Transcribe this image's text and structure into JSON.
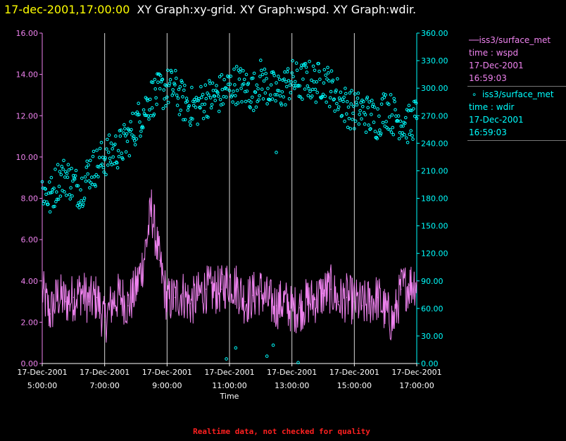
{
  "header": {
    "date_time": "17-dec-2001,17:00:00",
    "graphs": "XY Graph:xy-grid.  XY Graph:wspd.  XY Graph:wdir."
  },
  "legend": {
    "wspd": {
      "line1": "iss3/surface_met",
      "line2": "time : wspd",
      "line3": "17-Dec-2001",
      "line4": "16:59:03"
    },
    "wdir": {
      "line1": "iss3/surface_met",
      "line2": "time : wdir",
      "line3": "17-Dec-2001",
      "line4": "16:59:03"
    }
  },
  "footnote": "Realtime data, not checked for quality",
  "chart_data": {
    "type": "line",
    "xlabel": "Time",
    "x_range": [
      "17-Dec-2001 5:00:00",
      "17-Dec-2001 17:00:00"
    ],
    "x_ticks": [
      {
        "date": "17-Dec-2001",
        "time": "5:00:00"
      },
      {
        "date": "17-Dec-2001",
        "time": "7:00:00"
      },
      {
        "date": "17-Dec-2001",
        "time": "9:00:00"
      },
      {
        "date": "17-Dec-2001",
        "time": "11:00:00"
      },
      {
        "date": "17-Dec-2001",
        "time": "13:00:00"
      },
      {
        "date": "17-Dec-2001",
        "time": "15:00:00"
      },
      {
        "date": "17-Dec-2001",
        "time": "17:00:00"
      }
    ],
    "y_left": {
      "range": [
        0,
        16
      ],
      "ticks": [
        "0.00",
        "2.00",
        "4.00",
        "6.00",
        "8.00",
        "10.00",
        "12.00",
        "14.00",
        "16.00"
      ]
    },
    "y_right": {
      "range": [
        0,
        360
      ],
      "ticks": [
        "0.00",
        "30.00",
        "60.00",
        "90.00",
        "120.00",
        "150.00",
        "180.00",
        "210.00",
        "240.00",
        "270.00",
        "300.00",
        "330.00",
        "360.00"
      ]
    },
    "grid": "vertical",
    "colors": {
      "wspd": "#ee82ee",
      "wdir": "#00ffff",
      "left_axis": "#ee82ee",
      "right_axis": "#00ffff",
      "grid": "#ffffff"
    },
    "series": [
      {
        "name": "wspd",
        "axis": "left",
        "style": "line",
        "hours": [
          5.0,
          5.25,
          5.5,
          5.75,
          6.0,
          6.25,
          6.5,
          6.75,
          7.0,
          7.25,
          7.5,
          7.75,
          8.0,
          8.25,
          8.5,
          8.75,
          9.0,
          9.25,
          9.5,
          9.75,
          10.0,
          10.25,
          10.5,
          10.75,
          11.0,
          11.25,
          11.5,
          11.75,
          12.0,
          12.25,
          12.5,
          12.75,
          13.0,
          13.25,
          13.5,
          13.75,
          14.0,
          14.25,
          14.5,
          14.75,
          15.0,
          15.25,
          15.5,
          15.75,
          16.0,
          16.25,
          16.5,
          16.75,
          17.0
        ],
        "values": [
          3.5,
          2.4,
          3.3,
          3.0,
          3.2,
          3.5,
          3.0,
          3.2,
          2.0,
          3.0,
          3.3,
          2.8,
          3.6,
          5.0,
          7.5,
          5.0,
          3.0,
          3.2,
          3.4,
          2.9,
          3.3,
          3.6,
          3.5,
          3.6,
          4.0,
          3.7,
          3.0,
          3.3,
          3.5,
          3.0,
          2.8,
          3.0,
          2.6,
          2.7,
          3.0,
          3.1,
          3.4,
          3.6,
          3.0,
          3.2,
          3.0,
          2.8,
          3.0,
          3.2,
          2.5,
          2.0,
          3.6,
          3.8,
          4.0
        ]
      },
      {
        "name": "wdir",
        "axis": "right",
        "style": "points",
        "hours": [
          5.0,
          5.25,
          5.5,
          5.75,
          6.0,
          6.25,
          6.5,
          6.75,
          7.0,
          7.25,
          7.5,
          7.75,
          8.0,
          8.25,
          8.5,
          8.75,
          9.0,
          9.25,
          9.5,
          9.75,
          10.0,
          10.25,
          10.5,
          10.75,
          11.0,
          11.25,
          11.5,
          11.75,
          12.0,
          12.25,
          12.5,
          12.75,
          13.0,
          13.25,
          13.5,
          13.75,
          14.0,
          14.25,
          14.5,
          14.75,
          15.0,
          15.25,
          15.5,
          15.75,
          16.0,
          16.25,
          16.5,
          16.75,
          17.0
        ],
        "values": [
          190,
          180,
          200,
          205,
          195,
          190,
          210,
          215,
          225,
          230,
          235,
          245,
          260,
          275,
          290,
          295,
          300,
          300,
          285,
          280,
          280,
          290,
          290,
          295,
          300,
          305,
          300,
          295,
          310,
          300,
          295,
          300,
          310,
          305,
          310,
          305,
          310,
          300,
          290,
          280,
          275,
          275,
          270,
          265,
          280,
          270,
          265,
          260,
          270
        ],
        "outliers": {
          "hours": [
            10.9,
            11.2,
            12.2,
            12.4,
            12.5,
            13.2
          ],
          "values": [
            5,
            17,
            8,
            20,
            230,
            1
          ]
        }
      }
    ]
  }
}
